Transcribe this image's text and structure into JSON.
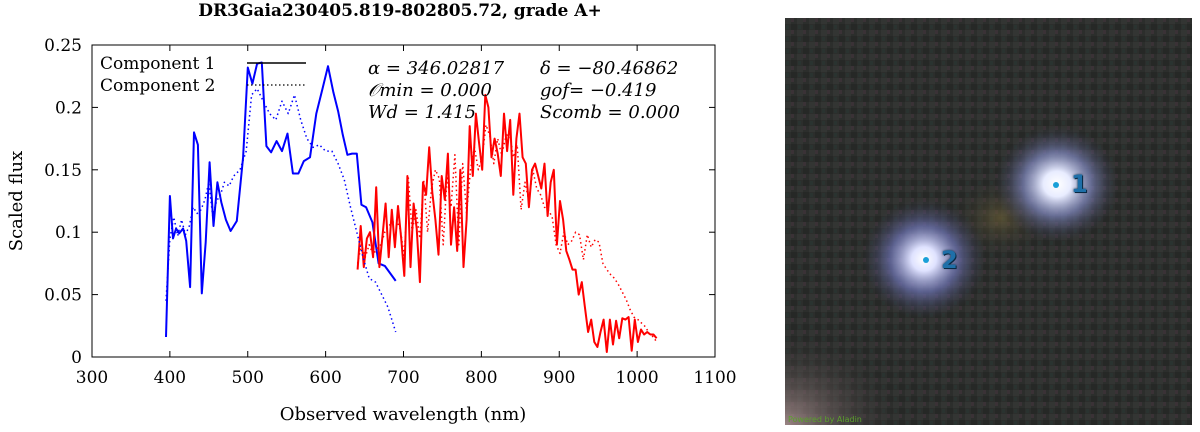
{
  "title": "DR3Gaia230405.819-802805.72, grade A+",
  "chart_data": {
    "type": "line",
    "xlabel": "Observed wavelength (nm)",
    "ylabel": "Scaled flux",
    "xlim": [
      300,
      1100
    ],
    "ylim": [
      0,
      0.25
    ],
    "xticks": [
      300,
      400,
      500,
      600,
      700,
      800,
      900,
      1000,
      1100
    ],
    "yticks": [
      0,
      0.05,
      0.1,
      0.15,
      0.2,
      0.25
    ],
    "xtick_labels": [
      "300",
      "400",
      "500",
      "600",
      "700",
      "800",
      "900",
      "1000",
      "1100"
    ],
    "ytick_labels": [
      "0",
      "0.05",
      "0.1",
      "0.15",
      "0.2",
      "0.25"
    ],
    "grid": false,
    "legend_position": "top-left",
    "legend": [
      {
        "label": "Component 1",
        "style": "solid"
      },
      {
        "label": "Component 2",
        "style": "dotted"
      }
    ],
    "annotations": {
      "alpha": "α = 346.02817",
      "delta": "δ = −80.46862",
      "omin": "𝒪min = 0.000",
      "gof": "gof= −0.419",
      "wd": "Wd = 1.415",
      "scomb": "Scomb = 0.000"
    },
    "series": [
      {
        "name": "Component 1",
        "segment": "blue",
        "color": "#0000ff",
        "style": "solid",
        "x": [
          395,
          400,
          404,
          408,
          412,
          417,
          421,
          426,
          431,
          436,
          441,
          446,
          451,
          456,
          461,
          466,
          472,
          478,
          486,
          494,
          500,
          506,
          512,
          518,
          524,
          530,
          537,
          544,
          551,
          558,
          565,
          572,
          580,
          588,
          596,
          603,
          610,
          616,
          622,
          628,
          634,
          640,
          646,
          652,
          660,
          668,
          676,
          690
        ],
        "y": [
          0.016,
          0.129,
          0.095,
          0.103,
          0.099,
          0.103,
          0.093,
          0.056,
          0.18,
          0.17,
          0.051,
          0.092,
          0.156,
          0.105,
          0.14,
          0.124,
          0.11,
          0.101,
          0.109,
          0.16,
          0.232,
          0.219,
          0.235,
          0.236,
          0.169,
          0.164,
          0.173,
          0.165,
          0.179,
          0.147,
          0.147,
          0.157,
          0.16,
          0.195,
          0.215,
          0.233,
          0.212,
          0.197,
          0.178,
          0.162,
          0.163,
          0.163,
          0.122,
          0.12,
          0.108,
          0.075,
          0.073,
          0.061
        ]
      },
      {
        "name": "Component 1",
        "segment": "red",
        "color": "#ff0000",
        "style": "solid",
        "x": [
          641,
          645,
          649,
          653,
          657,
          661,
          665,
          669,
          673,
          677,
          681,
          685,
          689,
          693,
          697,
          701,
          705,
          709,
          713,
          717,
          721,
          725,
          729,
          733,
          737,
          741,
          745,
          749,
          753,
          757,
          761,
          765,
          769,
          773,
          777,
          781,
          785,
          789,
          793,
          797,
          801,
          805,
          809,
          813,
          817,
          821,
          825,
          829,
          833,
          837,
          841,
          845,
          849,
          853,
          857,
          861,
          865,
          869,
          873,
          877,
          881,
          885,
          889,
          893,
          897,
          901,
          905,
          909,
          913,
          917,
          921,
          925,
          929,
          933,
          937,
          941,
          945,
          949,
          953,
          957,
          961,
          965,
          969,
          973,
          977,
          981,
          985,
          989,
          993,
          997,
          1001,
          1005,
          1009,
          1013,
          1017,
          1021,
          1025
        ],
        "y": [
          0.07,
          0.105,
          0.072,
          0.095,
          0.1,
          0.08,
          0.136,
          0.072,
          0.097,
          0.123,
          0.08,
          0.118,
          0.088,
          0.121,
          0.095,
          0.065,
          0.145,
          0.072,
          0.123,
          0.103,
          0.06,
          0.14,
          0.13,
          0.168,
          0.132,
          0.11,
          0.082,
          0.145,
          0.126,
          0.163,
          0.09,
          0.12,
          0.085,
          0.15,
          0.072,
          0.11,
          0.185,
          0.145,
          0.195,
          0.172,
          0.15,
          0.21,
          0.2,
          0.16,
          0.175,
          0.163,
          0.145,
          0.195,
          0.165,
          0.19,
          0.13,
          0.175,
          0.195,
          0.16,
          0.155,
          0.12,
          0.15,
          0.155,
          0.145,
          0.135,
          0.155,
          0.113,
          0.14,
          0.15,
          0.09,
          0.125,
          0.11,
          0.085,
          0.078,
          0.07,
          0.07,
          0.05,
          0.06,
          0.04,
          0.02,
          0.03,
          0.012,
          0.008,
          0.02,
          0.03,
          0.004,
          0.03,
          0.01,
          0.029,
          0.015,
          0.031,
          0.03,
          0.032,
          0.005,
          0.03,
          0.012,
          0.022,
          0.018,
          0.02,
          0.018,
          0.018,
          0.015
        ]
      },
      {
        "name": "Component 2",
        "segment": "blue",
        "color": "#0000ff",
        "style": "dotted",
        "x": [
          395,
          400,
          405,
          410,
          415,
          420,
          425,
          430,
          435,
          440,
          445,
          450,
          455,
          460,
          465,
          470,
          476,
          482,
          490,
          498,
          505,
          512,
          520,
          528,
          536,
          544,
          552,
          560,
          568,
          576,
          584,
          592,
          600,
          608,
          616,
          624,
          632,
          640,
          648,
          656,
          664,
          672,
          680,
          690
        ],
        "y": [
          0.045,
          0.095,
          0.112,
          0.097,
          0.11,
          0.098,
          0.105,
          0.12,
          0.115,
          0.118,
          0.126,
          0.14,
          0.113,
          0.125,
          0.13,
          0.14,
          0.137,
          0.145,
          0.15,
          0.165,
          0.21,
          0.215,
          0.205,
          0.195,
          0.19,
          0.205,
          0.195,
          0.21,
          0.19,
          0.175,
          0.168,
          0.17,
          0.165,
          0.165,
          0.155,
          0.142,
          0.12,
          0.1,
          0.08,
          0.063,
          0.06,
          0.05,
          0.04,
          0.02
        ]
      },
      {
        "name": "Component 2",
        "segment": "red",
        "color": "#ff0000",
        "style": "dotted",
        "x": [
          641,
          646,
          651,
          656,
          661,
          666,
          671,
          676,
          681,
          686,
          691,
          696,
          701,
          706,
          711,
          716,
          721,
          726,
          731,
          736,
          741,
          746,
          751,
          756,
          761,
          766,
          771,
          776,
          781,
          786,
          791,
          796,
          801,
          806,
          811,
          816,
          821,
          826,
          831,
          836,
          841,
          846,
          851,
          856,
          861,
          866,
          871,
          876,
          881,
          886,
          891,
          896,
          901,
          906,
          911,
          916,
          921,
          926,
          931,
          936,
          941,
          946,
          951,
          956,
          961,
          966,
          971,
          976,
          981,
          986,
          991,
          996,
          1001,
          1006,
          1011,
          1016,
          1021,
          1025
        ],
        "y": [
          0.075,
          0.09,
          0.08,
          0.09,
          0.082,
          0.087,
          0.09,
          0.1,
          0.105,
          0.108,
          0.11,
          0.102,
          0.08,
          0.145,
          0.1,
          0.118,
          0.095,
          0.142,
          0.1,
          0.135,
          0.15,
          0.143,
          0.09,
          0.145,
          0.12,
          0.162,
          0.09,
          0.155,
          0.115,
          0.15,
          0.168,
          0.15,
          0.16,
          0.186,
          0.177,
          0.155,
          0.175,
          0.162,
          0.175,
          0.182,
          0.16,
          0.17,
          0.118,
          0.14,
          0.125,
          0.15,
          0.135,
          0.13,
          0.12,
          0.118,
          0.112,
          0.09,
          0.083,
          0.1,
          0.09,
          0.093,
          0.1,
          0.098,
          0.078,
          0.098,
          0.088,
          0.094,
          0.092,
          0.075,
          0.07,
          0.066,
          0.063,
          0.058,
          0.052,
          0.046,
          0.038,
          0.032,
          0.03,
          0.027,
          0.024,
          0.018,
          0.016,
          0.012
        ]
      }
    ]
  },
  "image_panel": {
    "credit": "Powered by Aladin",
    "markers": [
      {
        "label": "1"
      },
      {
        "label": "2"
      }
    ]
  }
}
